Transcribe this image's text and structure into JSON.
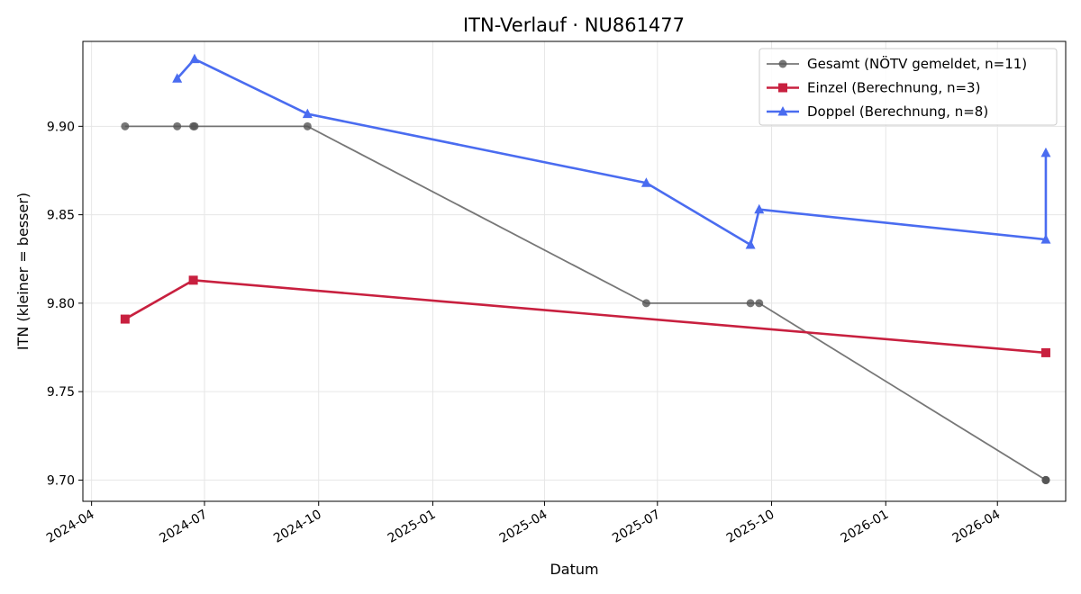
{
  "chart_data": {
    "type": "line",
    "title": "ITN-Verlauf · NU861477",
    "xlabel": "Datum",
    "ylabel": "ITN  (kleiner = besser)",
    "xlim": [
      "2024-03-25",
      "2026-05-26"
    ],
    "ylim": [
      9.688,
      9.948
    ],
    "x_ticks": [
      "2024-04",
      "2024-07",
      "2024-10",
      "2025-01",
      "2025-04",
      "2025-07",
      "2025-10",
      "2026-01",
      "2026-04"
    ],
    "y_ticks": [
      "9.70",
      "9.75",
      "9.80",
      "9.85",
      "9.90"
    ],
    "grid": true,
    "legend_position": "top-right",
    "series": [
      {
        "name": "Gesamt (NÖTV gemeldet, n=11)",
        "color": "#555555",
        "marker": "circle",
        "points": [
          {
            "x": "2024-04-28",
            "y": 9.9
          },
          {
            "x": "2024-06-09",
            "y": 9.9
          },
          {
            "x": "2024-06-22",
            "y": 9.9
          },
          {
            "x": "2024-06-23",
            "y": 9.9
          },
          {
            "x": "2024-09-22",
            "y": 9.9
          },
          {
            "x": "2025-06-22",
            "y": 9.8
          },
          {
            "x": "2025-09-14",
            "y": 9.8
          },
          {
            "x": "2025-09-21",
            "y": 9.8
          },
          {
            "x": "2026-05-10",
            "y": 9.7
          },
          {
            "x": "2026-05-10",
            "y": 9.7
          },
          {
            "x": "2026-05-10",
            "y": 9.7
          }
        ]
      },
      {
        "name": "Einzel (Berechnung, n=3)",
        "color": "#c8203f",
        "marker": "square",
        "points": [
          {
            "x": "2024-04-28",
            "y": 9.791
          },
          {
            "x": "2024-06-22",
            "y": 9.813
          },
          {
            "x": "2026-05-10",
            "y": 9.772
          }
        ]
      },
      {
        "name": "Doppel (Berechnung, n=8)",
        "color": "#4a6cf0",
        "marker": "triangle",
        "points": [
          {
            "x": "2024-06-09",
            "y": 9.927
          },
          {
            "x": "2024-06-23",
            "y": 9.938
          },
          {
            "x": "2024-09-22",
            "y": 9.907
          },
          {
            "x": "2025-06-22",
            "y": 9.868
          },
          {
            "x": "2025-09-14",
            "y": 9.833
          },
          {
            "x": "2025-09-21",
            "y": 9.853
          },
          {
            "x": "2026-05-10",
            "y": 9.836
          },
          {
            "x": "2026-05-10",
            "y": 9.885
          }
        ]
      }
    ]
  }
}
